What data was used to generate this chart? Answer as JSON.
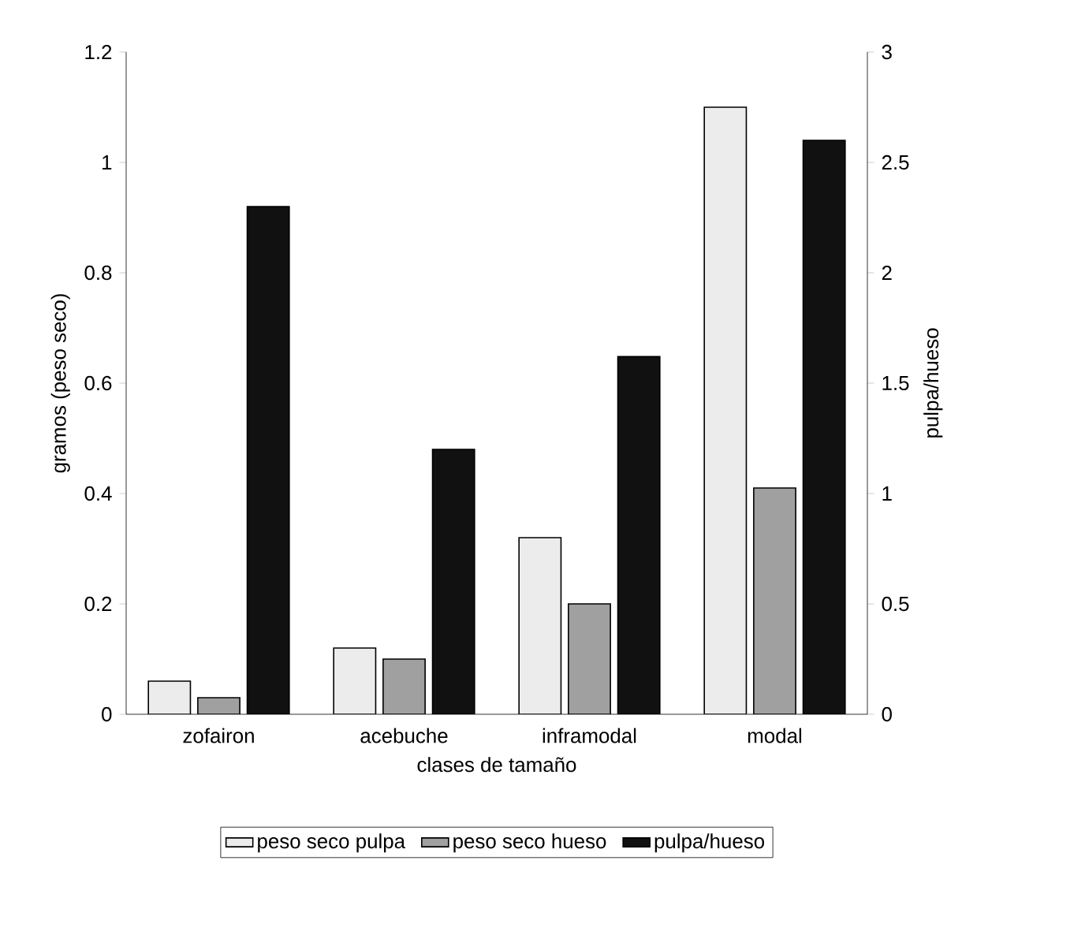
{
  "chart_data": {
    "type": "bar",
    "categories": [
      "zofairon",
      "acebuche",
      "inframodal",
      "modal"
    ],
    "xlabel": "clases de tamaño",
    "ylabel": "gramos (peso seco)",
    "y2label": "pulpa/hueso",
    "ylim": [
      0,
      1.2
    ],
    "yticks": [
      0,
      0.2,
      0.4,
      0.6,
      0.8,
      1,
      1.2
    ],
    "y2lim": [
      0,
      3
    ],
    "y2ticks": [
      0,
      0.5,
      1,
      1.5,
      2,
      2.5,
      3
    ],
    "grid": false,
    "legend": "bottom",
    "series": [
      {
        "name": "peso seco pulpa",
        "color": "#ececec",
        "values": [
          0.06,
          0.12,
          0.32,
          1.1
        ]
      },
      {
        "name": "peso seco hueso",
        "color": "#a0a0a0",
        "values": [
          0.03,
          0.1,
          0.2,
          0.41
        ]
      },
      {
        "name": "pulpa/hueso",
        "color": "#111111",
        "axis": "y2",
        "values": [
          2.3,
          1.2,
          1.62,
          2.6
        ]
      }
    ]
  }
}
